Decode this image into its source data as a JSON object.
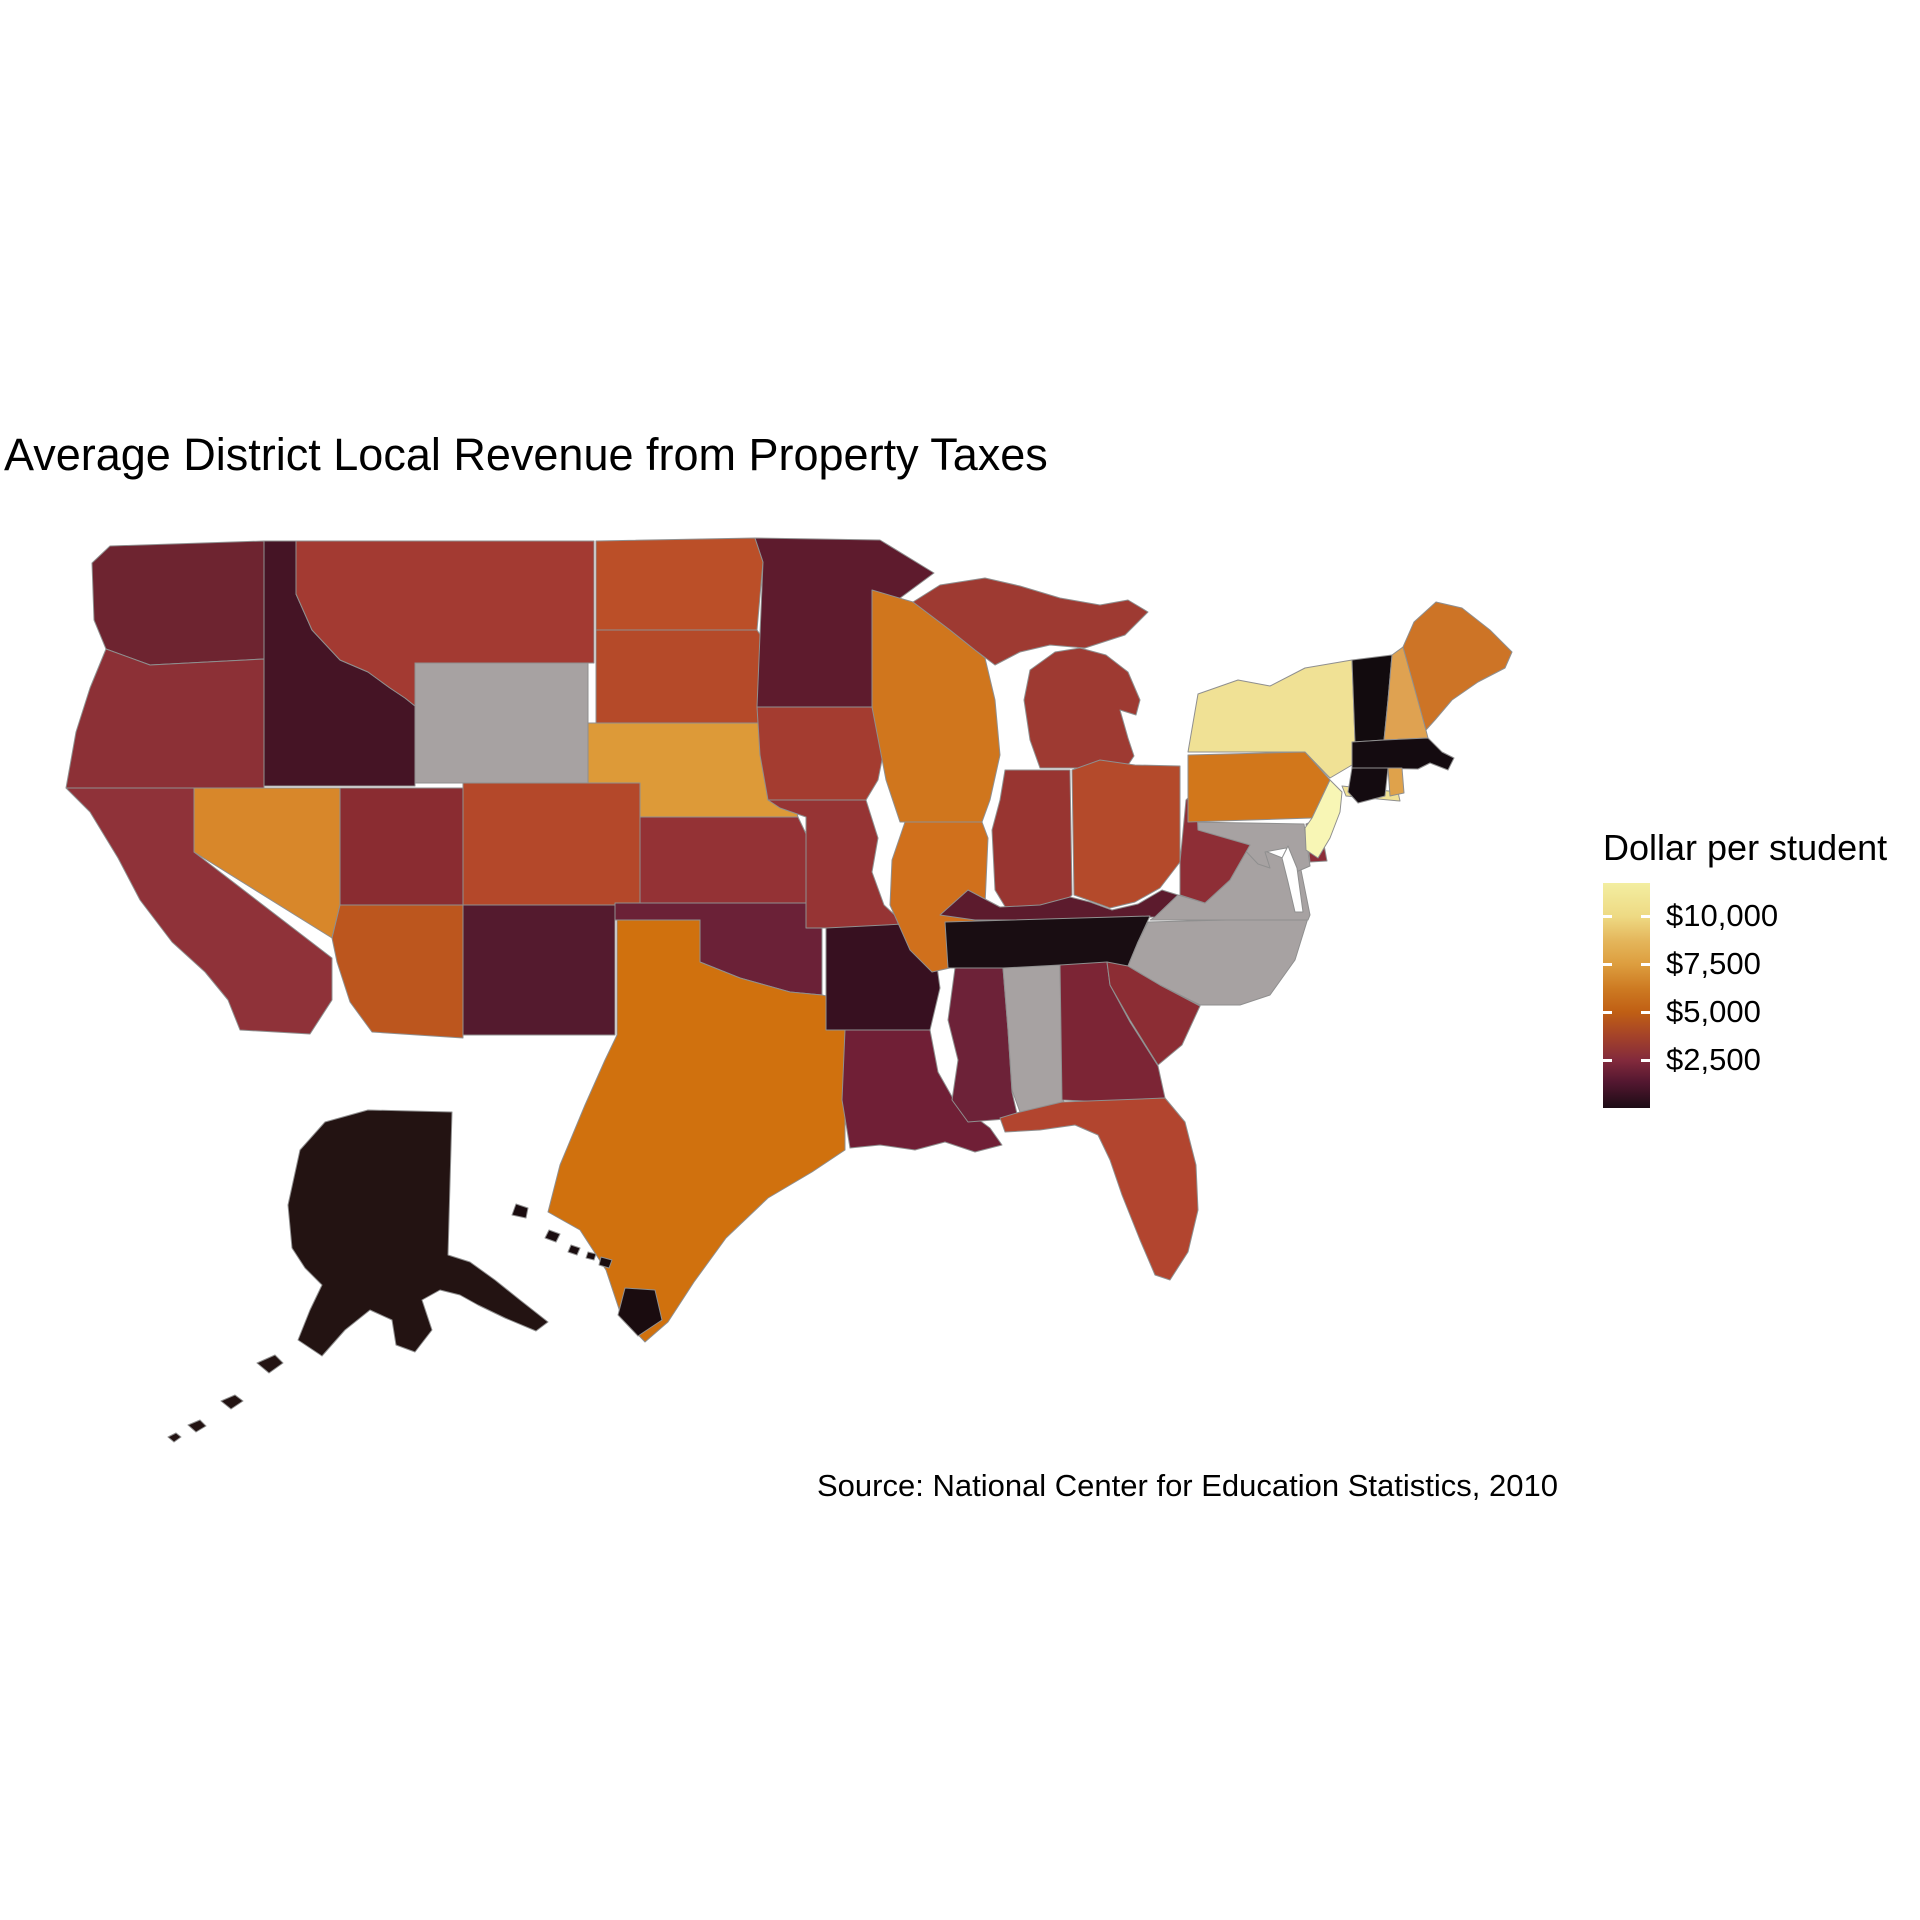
{
  "title": "Average District Local Revenue from Property Taxes",
  "source": "Source: National Center for Education Statistics, 2010",
  "legend": {
    "title": "Dollar per student",
    "ticks": [
      "$10,000",
      "$7,500",
      "$5,000",
      "$2,500"
    ]
  },
  "colors": {
    "background": "#ffffff",
    "na_fill": "#a7a2a2",
    "state_border": "#8f8f8f",
    "text": "#000000"
  },
  "chart_data": {
    "type": "choropleth_map",
    "title": "Average District Local Revenue from Property Taxes",
    "legend_title": "Dollar per student",
    "unit": "dollars per student",
    "source": "Source: National Center for Education Statistics, 2010",
    "scale": {
      "domain": [
        0,
        11700
      ],
      "tick_values": [
        10000,
        7500,
        5000,
        2500
      ],
      "na_color": "#a7a2a2",
      "gradient_stops_bottom_to_top": [
        "#1d0c16",
        "#531730",
        "#832a3c",
        "#a64428",
        "#c05f14",
        "#cd7a22",
        "#dd9e3f",
        "#e4b55a",
        "#eeda84",
        "#f3eea1"
      ]
    },
    "states": [
      {
        "code": "WA",
        "name": "Washington",
        "value": 2200,
        "fill": "#6e2430"
      },
      {
        "code": "OR",
        "name": "Oregon",
        "value": 2900,
        "fill": "#8c3036"
      },
      {
        "code": "CA",
        "name": "California",
        "value": 3000,
        "fill": "#8f3239"
      },
      {
        "code": "NV",
        "name": "Nevada",
        "value": 6900,
        "fill": "#d8872a"
      },
      {
        "code": "ID",
        "name": "Idaho",
        "value": 900,
        "fill": "#451425"
      },
      {
        "code": "MT",
        "name": "Montana",
        "value": 3800,
        "fill": "#a33a32"
      },
      {
        "code": "WY",
        "name": "Wyoming",
        "value": null,
        "fill": null
      },
      {
        "code": "UT",
        "name": "Utah",
        "value": 2800,
        "fill": "#8a2c31"
      },
      {
        "code": "CO",
        "name": "Colorado",
        "value": 4300,
        "fill": "#b4482a"
      },
      {
        "code": "AZ",
        "name": "Arizona",
        "value": 4800,
        "fill": "#bc561e"
      },
      {
        "code": "NM",
        "name": "New Mexico",
        "value": 1200,
        "fill": "#541a2e"
      },
      {
        "code": "ND",
        "name": "North Dakota",
        "value": 4600,
        "fill": "#bb4f28"
      },
      {
        "code": "SD",
        "name": "South Dakota",
        "value": 4400,
        "fill": "#b54a29"
      },
      {
        "code": "NE",
        "name": "Nebraska",
        "value": 7400,
        "fill": "#dd9a38"
      },
      {
        "code": "KS",
        "name": "Kansas",
        "value": 3100,
        "fill": "#943235"
      },
      {
        "code": "OK",
        "name": "Oklahoma",
        "value": 2000,
        "fill": "#6b2137"
      },
      {
        "code": "TX",
        "name": "Texas",
        "value": 5900,
        "fill": "#d0710e"
      },
      {
        "code": "MN",
        "name": "Minnesota",
        "value": 1500,
        "fill": "#5e1b2d"
      },
      {
        "code": "IA",
        "name": "Iowa",
        "value": 3900,
        "fill": "#a43c30"
      },
      {
        "code": "MO",
        "name": "Missouri",
        "value": 3200,
        "fill": "#963434"
      },
      {
        "code": "AR",
        "name": "Arkansas",
        "value": 600,
        "fill": "#371020"
      },
      {
        "code": "LA",
        "name": "Louisiana",
        "value": 2100,
        "fill": "#701f36"
      },
      {
        "code": "WI",
        "name": "Wisconsin",
        "value": 6100,
        "fill": "#d0761d"
      },
      {
        "code": "IL",
        "name": "Illinois",
        "value": 5900,
        "fill": "#d0701c"
      },
      {
        "code": "MI",
        "name": "Michigan",
        "value": 3600,
        "fill": "#9e3a32"
      },
      {
        "code": "IN",
        "name": "Indiana",
        "value": 3300,
        "fill": "#983531"
      },
      {
        "code": "OH",
        "name": "Ohio",
        "value": 4400,
        "fill": "#b44a2b"
      },
      {
        "code": "KY",
        "name": "Kentucky",
        "value": 1400,
        "fill": "#5c1b2d"
      },
      {
        "code": "TN",
        "name": "Tennessee",
        "value": 200,
        "fill": "#190d12"
      },
      {
        "code": "MS",
        "name": "Mississippi",
        "value": 2000,
        "fill": "#6d2238"
      },
      {
        "code": "AL",
        "name": "Alabama",
        "value": null,
        "fill": null
      },
      {
        "code": "GA",
        "name": "Georgia",
        "value": 2400,
        "fill": "#7c2535"
      },
      {
        "code": "SC",
        "name": "South Carolina",
        "value": 2900,
        "fill": "#8c2d34"
      },
      {
        "code": "FL",
        "name": "Florida",
        "value": 4200,
        "fill": "#b2452f"
      },
      {
        "code": "NC",
        "name": "North Carolina",
        "value": null,
        "fill": null
      },
      {
        "code": "VA",
        "name": "Virginia",
        "value": null,
        "fill": null
      },
      {
        "code": "MD",
        "name": "Maryland",
        "value": null,
        "fill": null
      },
      {
        "code": "WV",
        "name": "West Virginia",
        "value": 3000,
        "fill": "#8e2e36"
      },
      {
        "code": "DE",
        "name": "Delaware",
        "value": 2800,
        "fill": "#8c2d38"
      },
      {
        "code": "PA",
        "name": "Pennsylvania",
        "value": 6200,
        "fill": "#d2771b"
      },
      {
        "code": "NY",
        "name": "New York",
        "value": 10400,
        "fill": "#f0e195"
      },
      {
        "code": "NJ",
        "name": "New Jersey",
        "value": 11600,
        "fill": "#f8f6b5"
      },
      {
        "code": "VT",
        "name": "Vermont",
        "value": 100,
        "fill": "#120b0e"
      },
      {
        "code": "NH",
        "name": "New Hampshire",
        "value": 7700,
        "fill": "#dfa251"
      },
      {
        "code": "ME",
        "name": "Maine",
        "value": 6000,
        "fill": "#cd7426"
      },
      {
        "code": "MA",
        "name": "Massachusetts",
        "value": 100,
        "fill": "#140b10"
      },
      {
        "code": "CT",
        "name": "Connecticut",
        "value": 100,
        "fill": "#140b10"
      },
      {
        "code": "RI",
        "name": "Rhode Island",
        "value": 7600,
        "fill": "#dfa24b"
      },
      {
        "code": "AK",
        "name": "Alaska",
        "value": 300,
        "fill": "#231312"
      },
      {
        "code": "HI",
        "name": "Hawaii",
        "value": 100,
        "fill": "#1a0c0f"
      }
    ]
  }
}
